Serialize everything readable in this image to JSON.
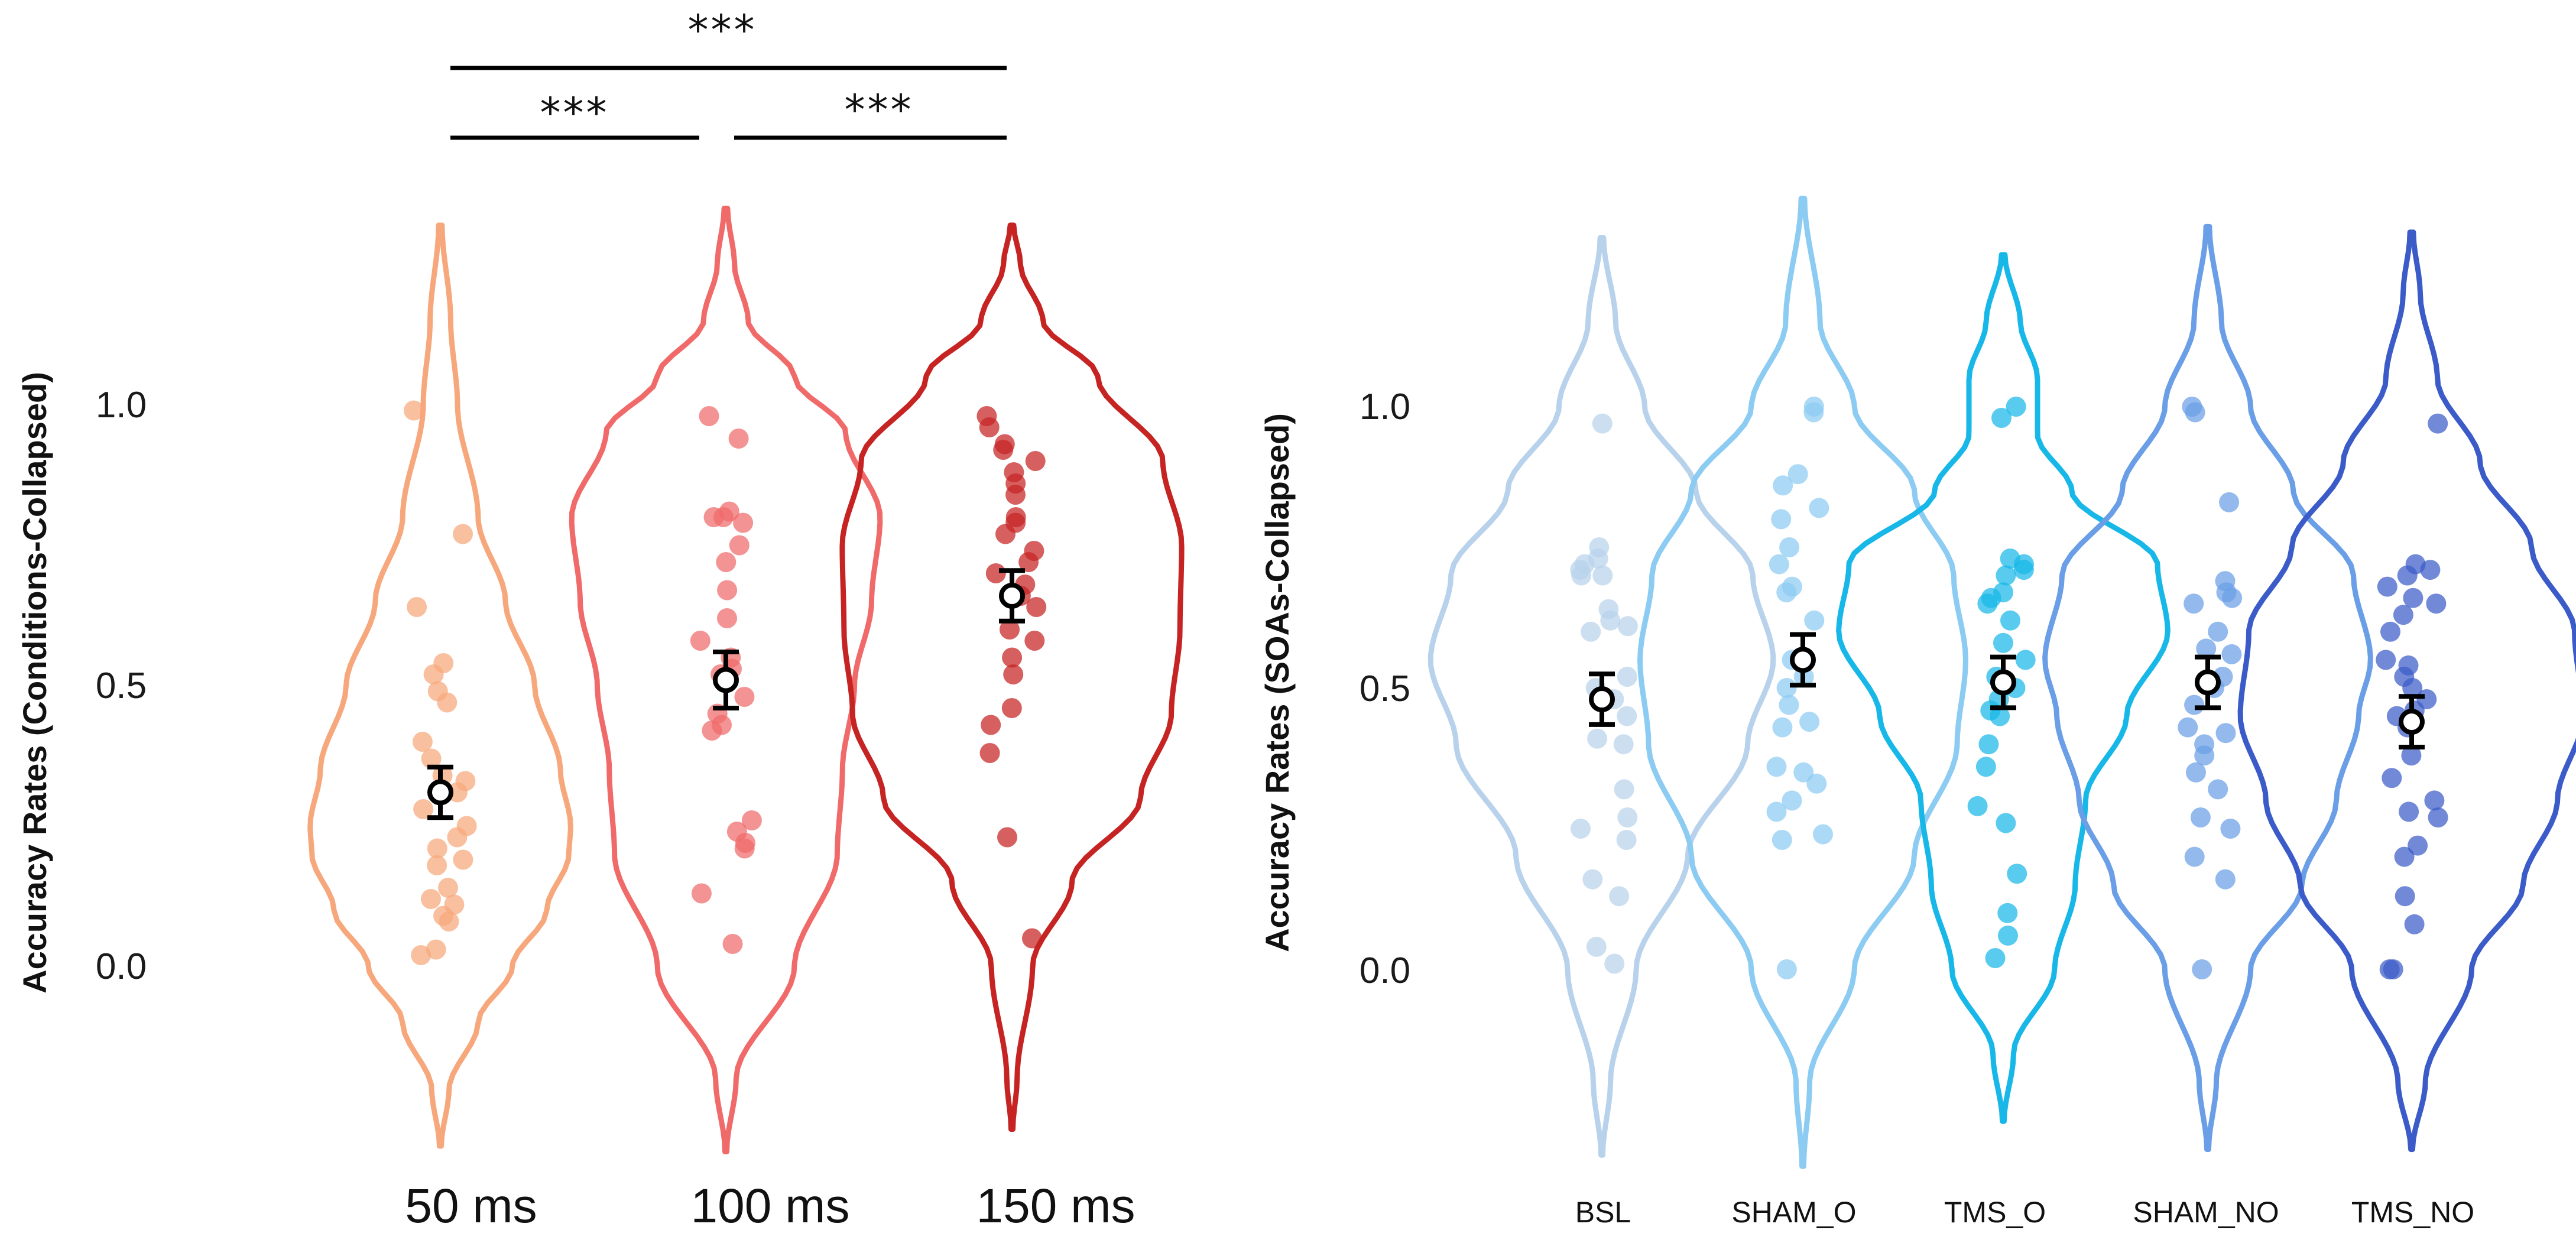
{
  "chart_data": [
    {
      "type": "violin",
      "ylabel": "Accuracy Rates (Conditions-Collapsed)",
      "yticks": [
        "0.0",
        "0.5",
        "1.0"
      ],
      "ylim": [
        -0.3,
        1.35
      ],
      "categories": [
        "50 ms",
        "100 ms",
        "150 ms"
      ],
      "colors": [
        "#f7a77c",
        "#f06a6a",
        "#c62323"
      ],
      "groups": [
        {
          "label": "50 ms",
          "mean": 0.31,
          "err": 0.045,
          "violin": {
            "min": -0.32,
            "max": 1.32,
            "profile": [
              [
                -0.32,
                0.005
              ],
              [
                -0.22,
                0.05
              ],
              [
                -0.1,
                0.22
              ],
              [
                0.0,
                0.42
              ],
              [
                0.1,
                0.62
              ],
              [
                0.2,
                0.75
              ],
              [
                0.25,
                0.76
              ],
              [
                0.35,
                0.7
              ],
              [
                0.5,
                0.55
              ],
              [
                0.65,
                0.38
              ],
              [
                0.8,
                0.22
              ],
              [
                1.0,
                0.1
              ],
              [
                1.15,
                0.06
              ],
              [
                1.32,
                0.01
              ]
            ]
          },
          "points": [
            0.99,
            0.77,
            0.64,
            0.54,
            0.52,
            0.49,
            0.47,
            0.4,
            0.37,
            0.34,
            0.33,
            0.31,
            0.28,
            0.25,
            0.23,
            0.21,
            0.19,
            0.18,
            0.14,
            0.12,
            0.11,
            0.09,
            0.08,
            0.03,
            0.02
          ]
        },
        {
          "label": "100 ms",
          "mean": 0.51,
          "err": 0.05,
          "violin": {
            "min": -0.33,
            "max": 1.35,
            "profile": [
              [
                -0.33,
                0.005
              ],
              [
                -0.2,
                0.06
              ],
              [
                0.0,
                0.4
              ],
              [
                0.2,
                0.65
              ],
              [
                0.35,
                0.68
              ],
              [
                0.5,
                0.75
              ],
              [
                0.65,
                0.85
              ],
              [
                0.8,
                0.9
              ],
              [
                0.95,
                0.7
              ],
              [
                1.05,
                0.4
              ],
              [
                1.15,
                0.13
              ],
              [
                1.25,
                0.05
              ],
              [
                1.35,
                0.01
              ]
            ]
          },
          "points": [
            0.98,
            0.94,
            0.81,
            0.8,
            0.8,
            0.79,
            0.75,
            0.72,
            0.67,
            0.62,
            0.58,
            0.55,
            0.53,
            0.52,
            0.48,
            0.45,
            0.43,
            0.42,
            0.26,
            0.24,
            0.22,
            0.21,
            0.13,
            0.04
          ]
        },
        {
          "label": "150 ms",
          "mean": 0.66,
          "err": 0.045,
          "violin": {
            "min": -0.29,
            "max": 1.32,
            "profile": [
              [
                -0.29,
                0.005
              ],
              [
                -0.2,
                0.03
              ],
              [
                0.0,
                0.12
              ],
              [
                0.15,
                0.35
              ],
              [
                0.3,
                0.75
              ],
              [
                0.45,
                0.93
              ],
              [
                0.6,
                0.98
              ],
              [
                0.75,
                0.99
              ],
              [
                0.9,
                0.88
              ],
              [
                1.05,
                0.5
              ],
              [
                1.15,
                0.18
              ],
              [
                1.25,
                0.05
              ],
              [
                1.32,
                0.01
              ]
            ]
          },
          "points": [
            0.98,
            0.96,
            0.93,
            0.92,
            0.9,
            0.88,
            0.86,
            0.84,
            0.8,
            0.79,
            0.77,
            0.74,
            0.72,
            0.7,
            0.68,
            0.66,
            0.64,
            0.6,
            0.58,
            0.55,
            0.52,
            0.46,
            0.43,
            0.38,
            0.23,
            0.05
          ]
        }
      ],
      "significance": [
        {
          "from": "50 ms",
          "to": "150 ms",
          "label": "***"
        },
        {
          "from": "50 ms",
          "to": "100 ms",
          "label": "***"
        },
        {
          "from": "100 ms",
          "to": "150 ms",
          "label": "***"
        }
      ]
    },
    {
      "type": "violin",
      "ylabel": "Accuracy Rates (SOAs-Collapsed)",
      "yticks": [
        "0.0",
        "0.5",
        "1.0"
      ],
      "ylim": [
        -0.3,
        1.35
      ],
      "categories": [
        "BSL",
        "SHAM_O",
        "TMS_O",
        "SHAM_NO",
        "TMS_NO"
      ],
      "colors": [
        "#b8d2ec",
        "#8ccbf2",
        "#17b7e8",
        "#6a9ee6",
        "#3b5bc8"
      ],
      "groups": [
        {
          "label": "BSL",
          "mean": 0.48,
          "err": 0.045,
          "violin": {
            "min": -0.33,
            "max": 1.3,
            "profile": [
              [
                -0.33,
                0.005
              ],
              [
                -0.2,
                0.05
              ],
              [
                0.0,
                0.2
              ],
              [
                0.2,
                0.5
              ],
              [
                0.4,
                0.85
              ],
              [
                0.55,
                1.0
              ],
              [
                0.7,
                0.88
              ],
              [
                0.85,
                0.55
              ],
              [
                1.0,
                0.25
              ],
              [
                1.15,
                0.08
              ],
              [
                1.3,
                0.01
              ]
            ]
          },
          "points": [
            0.97,
            0.75,
            0.73,
            0.72,
            0.71,
            0.7,
            0.7,
            0.64,
            0.62,
            0.61,
            0.6,
            0.52,
            0.5,
            0.48,
            0.45,
            0.41,
            0.4,
            0.32,
            0.27,
            0.25,
            0.23,
            0.16,
            0.13,
            0.04,
            0.01
          ]
        },
        {
          "label": "SHAM_O",
          "mean": 0.55,
          "err": 0.045,
          "violin": {
            "min": -0.35,
            "max": 1.37,
            "profile": [
              [
                -0.35,
                0.005
              ],
              [
                -0.2,
                0.04
              ],
              [
                0.0,
                0.3
              ],
              [
                0.2,
                0.65
              ],
              [
                0.4,
                0.9
              ],
              [
                0.55,
                0.95
              ],
              [
                0.7,
                0.88
              ],
              [
                0.85,
                0.65
              ],
              [
                1.0,
                0.3
              ],
              [
                1.15,
                0.1
              ],
              [
                1.37,
                0.01
              ]
            ]
          },
          "points": [
            1.0,
            0.99,
            0.88,
            0.86,
            0.82,
            0.8,
            0.75,
            0.72,
            0.68,
            0.67,
            0.62,
            0.55,
            0.52,
            0.5,
            0.47,
            0.44,
            0.43,
            0.36,
            0.35,
            0.33,
            0.3,
            0.28,
            0.24,
            0.23,
            0.0
          ]
        },
        {
          "label": "TMS_O",
          "mean": 0.51,
          "err": 0.045,
          "violin": {
            "min": -0.27,
            "max": 1.27,
            "profile": [
              [
                -0.27,
                0.005
              ],
              [
                -0.15,
                0.06
              ],
              [
                0.0,
                0.3
              ],
              [
                0.15,
                0.42
              ],
              [
                0.3,
                0.48
              ],
              [
                0.45,
                0.72
              ],
              [
                0.6,
                0.96
              ],
              [
                0.72,
                0.9
              ],
              [
                0.85,
                0.4
              ],
              [
                0.95,
                0.2
              ],
              [
                1.05,
                0.2
              ],
              [
                1.15,
                0.1
              ],
              [
                1.27,
                0.01
              ]
            ]
          },
          "points": [
            1.0,
            0.98,
            0.73,
            0.72,
            0.71,
            0.7,
            0.67,
            0.66,
            0.65,
            0.62,
            0.58,
            0.55,
            0.52,
            0.5,
            0.48,
            0.46,
            0.45,
            0.4,
            0.36,
            0.29,
            0.26,
            0.17,
            0.1,
            0.06,
            0.02
          ]
        },
        {
          "label": "SHAM_NO",
          "mean": 0.51,
          "err": 0.045,
          "violin": {
            "min": -0.32,
            "max": 1.32,
            "profile": [
              [
                -0.32,
                0.005
              ],
              [
                -0.2,
                0.05
              ],
              [
                0.0,
                0.25
              ],
              [
                0.15,
                0.55
              ],
              [
                0.3,
                0.75
              ],
              [
                0.45,
                0.88
              ],
              [
                0.55,
                0.95
              ],
              [
                0.7,
                0.85
              ],
              [
                0.85,
                0.5
              ],
              [
                1.0,
                0.25
              ],
              [
                1.15,
                0.08
              ],
              [
                1.32,
                0.01
              ]
            ]
          },
          "points": [
            1.0,
            0.99,
            0.83,
            0.69,
            0.67,
            0.66,
            0.65,
            0.6,
            0.57,
            0.56,
            0.52,
            0.5,
            0.47,
            0.43,
            0.42,
            0.4,
            0.38,
            0.35,
            0.32,
            0.27,
            0.25,
            0.2,
            0.16,
            0.0
          ]
        },
        {
          "label": "TMS_NO",
          "mean": 0.44,
          "err": 0.045,
          "violin": {
            "min": -0.32,
            "max": 1.31,
            "profile": [
              [
                -0.32,
                0.005
              ],
              [
                -0.2,
                0.08
              ],
              [
                0.0,
                0.35
              ],
              [
                0.15,
                0.65
              ],
              [
                0.3,
                0.85
              ],
              [
                0.45,
                1.0
              ],
              [
                0.6,
                0.95
              ],
              [
                0.75,
                0.7
              ],
              [
                0.9,
                0.4
              ],
              [
                1.05,
                0.15
              ],
              [
                1.2,
                0.05
              ],
              [
                1.31,
                0.01
              ]
            ]
          },
          "points": [
            0.97,
            0.72,
            0.71,
            0.7,
            0.68,
            0.66,
            0.65,
            0.63,
            0.6,
            0.55,
            0.54,
            0.52,
            0.5,
            0.48,
            0.46,
            0.45,
            0.43,
            0.38,
            0.34,
            0.3,
            0.28,
            0.27,
            0.22,
            0.2,
            0.13,
            0.08,
            0.0,
            0.0
          ]
        }
      ]
    }
  ]
}
